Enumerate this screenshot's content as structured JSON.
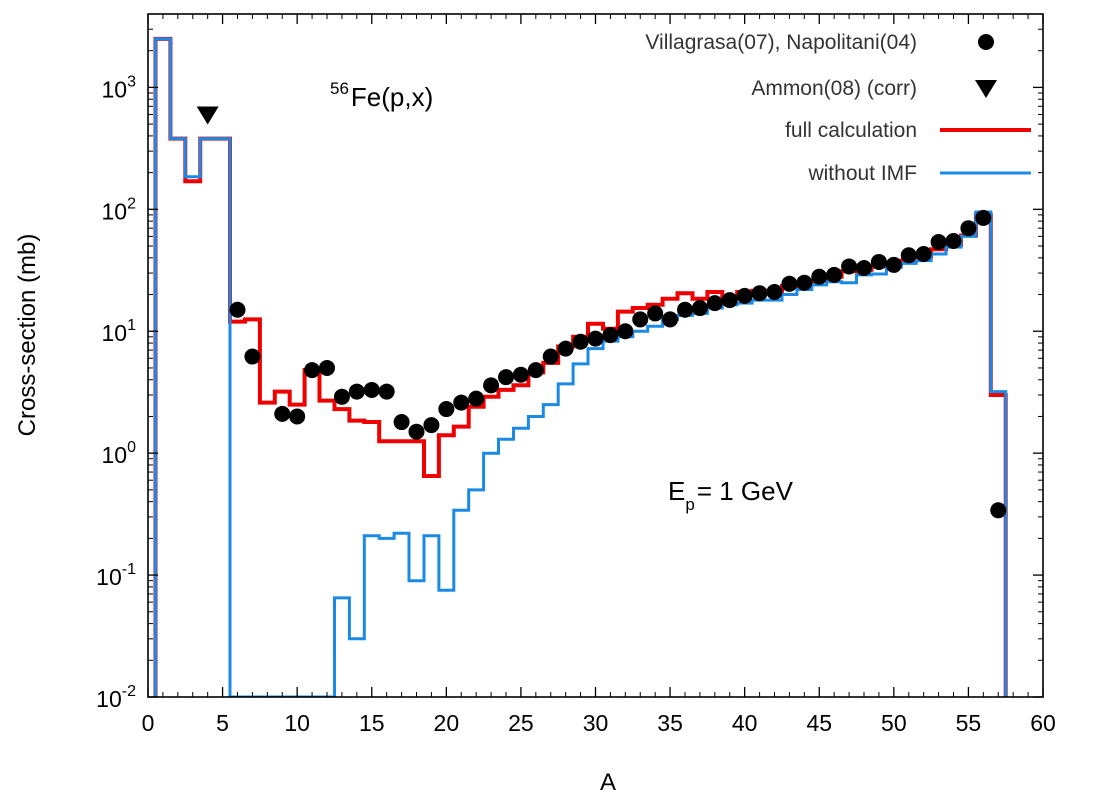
{
  "chart_data": {
    "type": "line",
    "xlabel": "A",
    "ylabel": "Cross-section (mb)",
    "xlim": [
      0,
      60
    ],
    "ylim": [
      0.01,
      4000
    ],
    "yscale": "log",
    "grid": false,
    "legend_position": "top-right",
    "x_ticks": [
      "0",
      "5",
      "10",
      "15",
      "20",
      "25",
      "30",
      "35",
      "40",
      "45",
      "50",
      "55",
      "60"
    ],
    "y_ticks": [
      {
        "base": "10",
        "exp": "-2"
      },
      {
        "base": "10",
        "exp": "-1"
      },
      {
        "base": "10",
        "exp": "0"
      },
      {
        "base": "10",
        "exp": "1"
      },
      {
        "base": "10",
        "exp": "2"
      },
      {
        "base": "10",
        "exp": "3"
      }
    ],
    "annotations": {
      "reaction_sup": "56",
      "reaction": "Fe(p,x)",
      "energy_main": "E",
      "energy_sub": "p",
      "energy_rest": "= 1 GeV"
    },
    "legend": [
      {
        "label": "Villagrasa(07), Napolitani(04)",
        "marker": "circle",
        "color": "#000000"
      },
      {
        "label": "Ammon(08) (corr)",
        "marker": "triangle-down",
        "color": "#000000"
      },
      {
        "label": "full calculation",
        "marker": "line",
        "color": "#ee0000"
      },
      {
        "label": "without IMF",
        "marker": "line",
        "color": "#1a8ae5"
      }
    ],
    "series": [
      {
        "name": "Villagrasa(07), Napolitani(04)",
        "style": "points-circle",
        "color": "#000000",
        "points": [
          [
            6,
            15
          ],
          [
            7,
            6.2
          ],
          [
            9,
            2.1
          ],
          [
            10,
            2.0
          ],
          [
            11,
            4.8
          ],
          [
            12,
            5.0
          ],
          [
            13,
            2.9
          ],
          [
            14,
            3.2
          ],
          [
            15,
            3.3
          ],
          [
            16,
            3.2
          ],
          [
            17,
            1.8
          ],
          [
            18,
            1.5
          ],
          [
            19,
            1.7
          ],
          [
            20,
            2.3
          ],
          [
            21,
            2.6
          ],
          [
            22,
            2.8
          ],
          [
            23,
            3.6
          ],
          [
            24,
            4.2
          ],
          [
            25,
            4.4
          ],
          [
            26,
            4.8
          ],
          [
            27,
            6.2
          ],
          [
            28,
            7.2
          ],
          [
            29,
            8.2
          ],
          [
            30,
            8.7
          ],
          [
            31,
            9.3
          ],
          [
            32,
            10
          ],
          [
            33,
            12.5
          ],
          [
            34,
            14
          ],
          [
            35,
            12.5
          ],
          [
            36,
            15
          ],
          [
            37,
            15.5
          ],
          [
            38,
            17
          ],
          [
            39,
            18
          ],
          [
            40,
            19.5
          ],
          [
            41,
            20.5
          ],
          [
            42,
            21
          ],
          [
            43,
            24.5
          ],
          [
            44,
            25
          ],
          [
            45,
            28
          ],
          [
            46,
            29
          ],
          [
            47,
            34
          ],
          [
            48,
            33
          ],
          [
            49,
            37
          ],
          [
            50,
            35
          ],
          [
            51,
            42
          ],
          [
            52,
            43
          ],
          [
            53,
            54
          ],
          [
            54,
            55
          ],
          [
            55,
            70
          ],
          [
            56,
            85
          ],
          [
            57,
            0.34
          ]
        ]
      },
      {
        "name": "Ammon(08) (corr)",
        "style": "points-triangle-down",
        "color": "#000000",
        "points": [
          [
            4,
            600
          ]
        ]
      },
      {
        "name": "full calculation",
        "style": "steps",
        "color": "#ee0000",
        "points": [
          [
            1,
            2500
          ],
          [
            2,
            380
          ],
          [
            3,
            170
          ],
          [
            4,
            380
          ],
          [
            5,
            380
          ],
          [
            6,
            12
          ],
          [
            7,
            12.5
          ],
          [
            8,
            2.6
          ],
          [
            9,
            3.2
          ],
          [
            10,
            2.5
          ],
          [
            11,
            4.8
          ],
          [
            12,
            2.7
          ],
          [
            13,
            2.3
          ],
          [
            14,
            1.85
          ],
          [
            15,
            1.8
          ],
          [
            16,
            1.25
          ],
          [
            17,
            1.25
          ],
          [
            18,
            1.25
          ],
          [
            19,
            0.65
          ],
          [
            20,
            1.4
          ],
          [
            21,
            1.65
          ],
          [
            22,
            2.4
          ],
          [
            23,
            2.9
          ],
          [
            24,
            3.3
          ],
          [
            25,
            3.6
          ],
          [
            26,
            4.6
          ],
          [
            27,
            5.5
          ],
          [
            28,
            7.5
          ],
          [
            29,
            9.0
          ],
          [
            30,
            11.5
          ],
          [
            31,
            10.5
          ],
          [
            32,
            14.5
          ],
          [
            33,
            15.5
          ],
          [
            34,
            16.5
          ],
          [
            35,
            18.5
          ],
          [
            36,
            20.5
          ],
          [
            37,
            18.5
          ],
          [
            38,
            21
          ],
          [
            39,
            19
          ],
          [
            40,
            21
          ],
          [
            41,
            21.5
          ],
          [
            42,
            21.5
          ],
          [
            43,
            23.5
          ],
          [
            44,
            24.5
          ],
          [
            45,
            26
          ],
          [
            46,
            28
          ],
          [
            47,
            31
          ],
          [
            48,
            32
          ],
          [
            49,
            34
          ],
          [
            50,
            36
          ],
          [
            51,
            38
          ],
          [
            52,
            41
          ],
          [
            53,
            47
          ],
          [
            54,
            51
          ],
          [
            55,
            61
          ],
          [
            56,
            90
          ],
          [
            57,
            3.0
          ]
        ]
      },
      {
        "name": "without IMF",
        "style": "steps",
        "color": "#1a8ae5",
        "points": [
          [
            1,
            2500
          ],
          [
            2,
            380
          ],
          [
            3,
            185
          ],
          [
            4,
            380
          ],
          [
            5,
            380
          ],
          [
            6,
            0.01
          ],
          [
            7,
            0.01
          ],
          [
            8,
            0.01
          ],
          [
            9,
            0.01
          ],
          [
            10,
            0.01
          ],
          [
            11,
            0.01
          ],
          [
            12,
            0.01
          ],
          [
            13,
            0.065
          ],
          [
            14,
            0.03
          ],
          [
            15,
            0.21
          ],
          [
            16,
            0.2
          ],
          [
            17,
            0.22
          ],
          [
            18,
            0.09
          ],
          [
            19,
            0.21
          ],
          [
            20,
            0.075
          ],
          [
            21,
            0.34
          ],
          [
            22,
            0.5
          ],
          [
            23,
            1.0
          ],
          [
            24,
            1.3
          ],
          [
            25,
            1.6
          ],
          [
            26,
            2.0
          ],
          [
            27,
            2.5
          ],
          [
            28,
            3.7
          ],
          [
            29,
            5.4
          ],
          [
            30,
            7.2
          ],
          [
            31,
            8.3
          ],
          [
            32,
            9.0
          ],
          [
            33,
            10.0
          ],
          [
            34,
            11.0
          ],
          [
            35,
            12.5
          ],
          [
            36,
            13.5
          ],
          [
            37,
            14.0
          ],
          [
            38,
            15.5
          ],
          [
            39,
            16.5
          ],
          [
            40,
            17.0
          ],
          [
            41,
            18.0
          ],
          [
            42,
            18.0
          ],
          [
            43,
            20.0
          ],
          [
            44,
            22.0
          ],
          [
            45,
            24.0
          ],
          [
            46,
            25.5
          ],
          [
            47,
            25.0
          ],
          [
            48,
            29.0
          ],
          [
            49,
            29.5
          ],
          [
            50,
            33.5
          ],
          [
            51,
            36.0
          ],
          [
            52,
            38.0
          ],
          [
            53,
            43.0
          ],
          [
            54,
            49.0
          ],
          [
            55,
            60.0
          ],
          [
            56,
            95.0
          ],
          [
            57,
            3.2
          ]
        ]
      }
    ]
  }
}
